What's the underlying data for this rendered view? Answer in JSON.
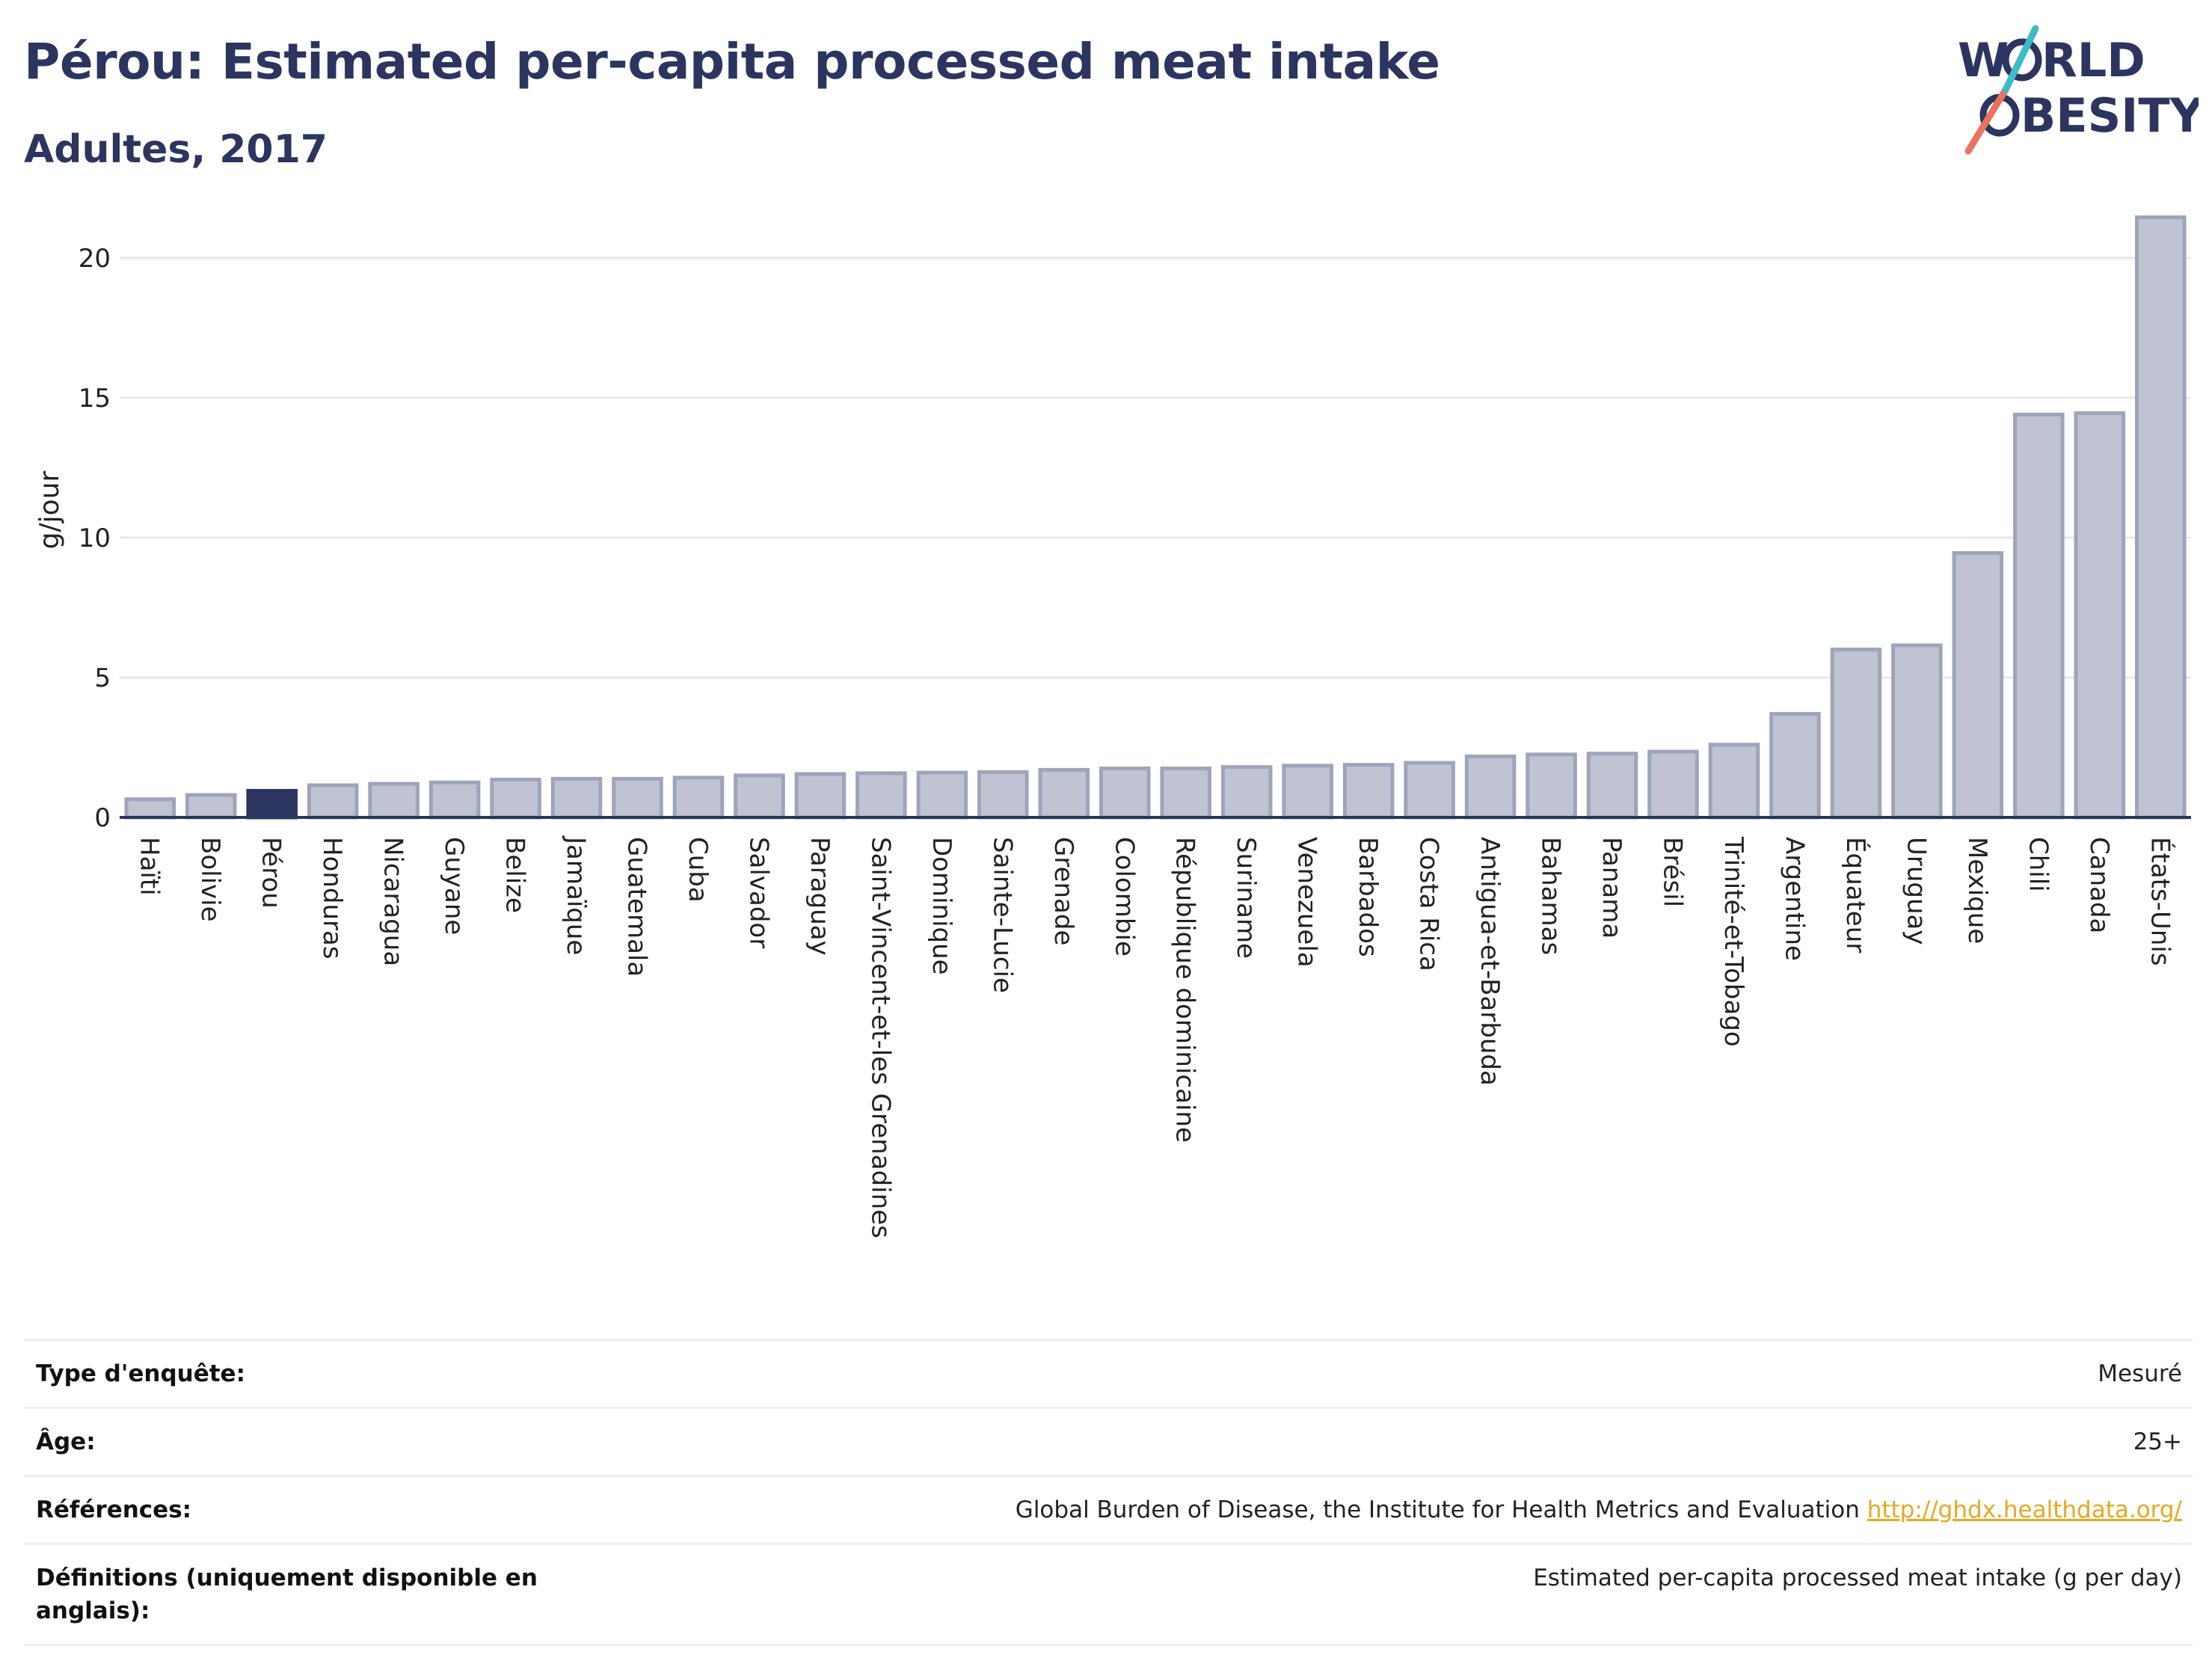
{
  "header": {
    "title": "Pérou: Estimated per-capita processed meat intake",
    "subtitle": "Adultes, 2017"
  },
  "logo": {
    "line1": "WORLD",
    "line2": "OBESITY",
    "colors": [
      "#2b3560",
      "#e8735e",
      "#3cbcc4"
    ]
  },
  "colors": {
    "bar": "#c0c4d2",
    "bar_border": "#9ea4ba",
    "highlight": "#2b3560",
    "grid": "#e6e8ec",
    "axis": "#2b3560"
  },
  "chart_data": {
    "type": "bar",
    "ylabel": "g/jour",
    "ylim": [
      0,
      22
    ],
    "yticks": [
      0,
      5,
      10,
      15,
      20
    ],
    "highlight": "Pérou",
    "categories": [
      "Haïti",
      "Bolivie",
      "Pérou",
      "Honduras",
      "Nicaragua",
      "Guyane",
      "Belize",
      "Jamaïque",
      "Guatemala",
      "Cuba",
      "Salvador",
      "Paraguay",
      "Saint-Vincent-et-les Grenadines",
      "Dominique",
      "Sainte-Lucie",
      "Grenade",
      "Colombie",
      "République dominicaine",
      "Suriname",
      "Venezuela",
      "Barbados",
      "Costa Rica",
      "Antigua-et-Barbuda",
      "Bahamas",
      "Panama",
      "Brésil",
      "Trinité-et-Tobago",
      "Argentine",
      "Équateur",
      "Uruguay",
      "Mexique",
      "Chili",
      "Canada",
      "États-Unis"
    ],
    "values": [
      0.65,
      0.8,
      0.95,
      1.15,
      1.2,
      1.25,
      1.35,
      1.38,
      1.38,
      1.42,
      1.5,
      1.55,
      1.58,
      1.6,
      1.62,
      1.7,
      1.75,
      1.75,
      1.8,
      1.85,
      1.88,
      1.95,
      2.18,
      2.25,
      2.28,
      2.35,
      2.6,
      3.7,
      6.0,
      6.15,
      9.45,
      14.4,
      14.45,
      21.45
    ]
  },
  "info": [
    {
      "key": "Type d'enquête:",
      "value": "Mesuré"
    },
    {
      "key": "Âge:",
      "value": "25+"
    },
    {
      "key": "Références:",
      "value": "Global Burden of Disease, the Institute for Health Metrics and Evaluation",
      "link": "http://ghdx.healthdata.org/"
    },
    {
      "key": "Définitions (uniquement disponible en anglais):",
      "value": "Estimated per-capita processed meat intake (g per day)"
    }
  ]
}
